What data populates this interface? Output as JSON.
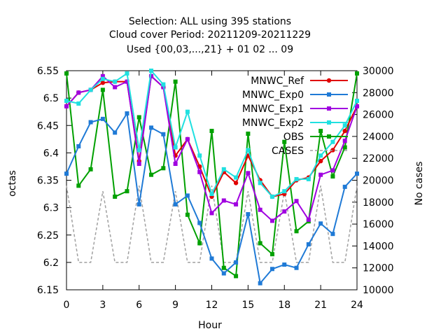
{
  "chart_data": {
    "type": "line",
    "title_lines": [
      "Selection: ALL using   395 stations",
      "Cloud cover   Period: 20211209-20211229",
      "Used {00,03,...,21} + 01 02 ... 09"
    ],
    "xlabel": "Hour",
    "ylabel": "octas",
    "y2label": "No cases",
    "x_ticks": [
      0,
      3,
      6,
      9,
      12,
      15,
      18,
      21,
      24
    ],
    "y_ticks": [
      "6.15",
      "6.2",
      "6.25",
      "6.3",
      "6.35",
      "6.4",
      "6.45",
      "6.5",
      "6.55"
    ],
    "y2_ticks": [
      "10000",
      "12000",
      "14000",
      "16000",
      "18000",
      "20000",
      "22000",
      "24000",
      "26000",
      "28000",
      "30000"
    ],
    "xlim": [
      0,
      24
    ],
    "ylim": [
      6.15,
      6.55
    ],
    "y2lim": [
      10000,
      30000
    ],
    "legend_position": "top-right",
    "x": [
      0,
      1,
      2,
      3,
      4,
      5,
      6,
      7,
      8,
      9,
      10,
      11,
      12,
      13,
      14,
      15,
      16,
      17,
      18,
      19,
      20,
      21,
      22,
      23,
      24
    ],
    "series": [
      {
        "name": "MNWC_Ref",
        "color": "#e00000",
        "marker": "circle",
        "values": [
          6.485,
          6.51,
          6.515,
          6.528,
          6.53,
          6.53,
          6.385,
          6.54,
          6.52,
          6.395,
          6.425,
          6.375,
          6.32,
          6.365,
          6.345,
          6.395,
          6.35,
          6.32,
          6.325,
          6.35,
          6.355,
          6.385,
          6.405,
          6.44,
          6.485
        ]
      },
      {
        "name": "MNWC_Exp0",
        "color": "#1f7ad6",
        "marker": "square",
        "values": [
          6.362,
          6.412,
          6.456,
          6.462,
          6.437,
          6.472,
          6.306,
          6.446,
          6.434,
          6.306,
          6.322,
          6.272,
          6.207,
          6.18,
          6.2,
          6.288,
          6.162,
          6.188,
          6.196,
          6.19,
          6.233,
          6.271,
          6.252,
          6.338,
          6.362
        ]
      },
      {
        "name": "MNWC_Exp1",
        "color": "#a000e0",
        "marker": "square",
        "values": [
          6.485,
          6.51,
          6.515,
          6.54,
          6.52,
          6.53,
          6.38,
          6.54,
          6.52,
          6.38,
          6.425,
          6.365,
          6.29,
          6.313,
          6.306,
          6.363,
          6.296,
          6.276,
          6.293,
          6.312,
          6.278,
          6.36,
          6.368,
          6.422,
          6.485
        ]
      },
      {
        "name": "MNWC_Exp2",
        "color": "#20e0e0",
        "marker": "square",
        "values": [
          6.495,
          6.49,
          6.515,
          6.535,
          6.53,
          6.545,
          6.405,
          6.55,
          6.525,
          6.41,
          6.475,
          6.395,
          6.325,
          6.37,
          6.355,
          6.405,
          6.345,
          6.32,
          6.33,
          6.352,
          6.352,
          6.395,
          6.42,
          6.45,
          6.495
        ]
      },
      {
        "name": "OBS",
        "color": "#00a000",
        "marker": "square",
        "values": [
          6.545,
          6.34,
          6.37,
          6.515,
          6.32,
          6.33,
          6.465,
          6.36,
          6.372,
          6.53,
          6.287,
          6.235,
          6.44,
          6.19,
          6.175,
          6.435,
          6.235,
          6.215,
          6.42,
          6.257,
          6.275,
          6.44,
          6.357,
          6.41,
          6.545
        ]
      },
      {
        "name": "CASES",
        "color": "#a0a0a0",
        "marker": "none",
        "dashed": true,
        "axis": "y2",
        "values": [
          19500,
          12500,
          12500,
          19000,
          12500,
          12500,
          19500,
          12500,
          12500,
          19000,
          12500,
          12500,
          19500,
          12500,
          12500,
          19000,
          12500,
          12500,
          19000,
          12500,
          12500,
          19500,
          12500,
          12500,
          19500
        ]
      }
    ]
  }
}
